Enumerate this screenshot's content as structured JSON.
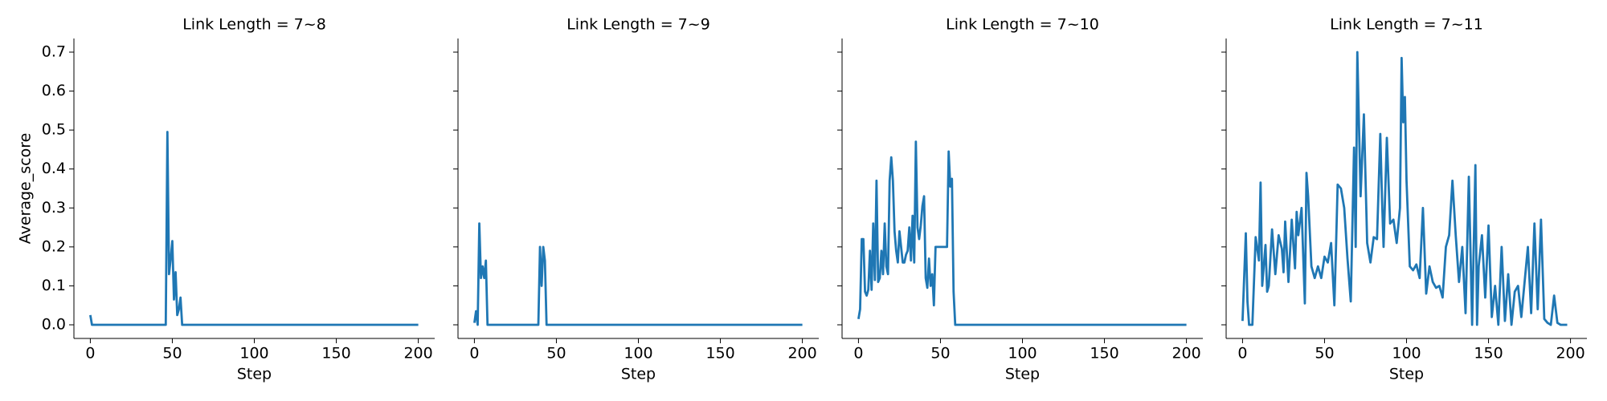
{
  "chart_data": [
    {
      "type": "line",
      "title": "Link Length = 7~8",
      "xlabel": "Step",
      "ylabel": "Average_score",
      "color": "#1f77b4",
      "xlim": [
        -10,
        210
      ],
      "xticks": [
        0,
        50,
        100,
        150,
        200
      ],
      "ylim": [
        -0.035,
        0.735
      ],
      "yticks": [
        {
          "value": 0,
          "label": "0.0"
        },
        0.1,
        0.2,
        0.3,
        0.4,
        0.5,
        0.6,
        0.7
      ],
      "x": [
        0,
        1,
        46,
        47,
        48,
        49,
        50,
        51,
        52,
        53,
        54,
        55,
        56,
        200
      ],
      "values": [
        0.025,
        0,
        0,
        0.495,
        0.13,
        0.17,
        0.215,
        0.065,
        0.135,
        0.025,
        0.04,
        0.07,
        0,
        0
      ]
    },
    {
      "type": "line",
      "title": "Link Length = 7~9",
      "xlabel": "Step",
      "color": "#1f77b4",
      "xlim": [
        -10,
        210
      ],
      "xticks": [
        0,
        50,
        100,
        150,
        200
      ],
      "x": [
        0,
        1,
        2,
        3,
        4,
        5,
        6,
        7,
        8,
        39,
        40,
        41,
        42,
        43,
        44,
        200
      ],
      "values": [
        0.005,
        0.035,
        0,
        0.26,
        0.12,
        0.15,
        0.12,
        0.165,
        0,
        0,
        0.2,
        0.1,
        0.2,
        0.165,
        0,
        0
      ]
    },
    {
      "type": "line",
      "title": "Link Length = 7~10",
      "xlabel": "Step",
      "color": "#1f77b4",
      "xlim": [
        -10,
        210
      ],
      "xticks": [
        0,
        50,
        100,
        150,
        200
      ],
      "x": [
        0,
        1,
        2,
        3,
        4,
        5,
        6,
        7,
        8,
        9,
        10,
        11,
        12,
        13,
        14,
        15,
        16,
        17,
        18,
        19,
        20,
        21,
        22,
        23,
        24,
        25,
        26,
        27,
        28,
        29,
        30,
        31,
        32,
        33,
        34,
        35,
        36,
        37,
        38,
        39,
        40,
        41,
        42,
        43,
        44,
        45,
        46,
        47,
        48,
        49,
        50,
        51,
        52,
        53,
        54,
        55,
        56,
        57,
        58,
        59,
        200
      ],
      "values": [
        0.015,
        0.04,
        0.22,
        0.22,
        0.085,
        0.075,
        0.09,
        0.19,
        0.09,
        0.26,
        0.115,
        0.37,
        0.11,
        0.12,
        0.19,
        0.13,
        0.26,
        0.15,
        0.13,
        0.37,
        0.43,
        0.37,
        0.24,
        0.19,
        0.16,
        0.24,
        0.2,
        0.16,
        0.16,
        0.18,
        0.19,
        0.25,
        0.165,
        0.28,
        0.16,
        0.47,
        0.25,
        0.22,
        0.255,
        0.305,
        0.33,
        0.12,
        0.095,
        0.17,
        0.1,
        0.13,
        0.05,
        0.2,
        0.2,
        0.2,
        0.2,
        0.2,
        0.2,
        0.2,
        0.2,
        0.445,
        0.355,
        0.375,
        0.085,
        0,
        0
      ]
    },
    {
      "type": "line",
      "title": "Link Length = 7~11",
      "xlabel": "Step",
      "color": "#1f77b4",
      "xlim": [
        -10,
        210
      ],
      "xticks": [
        0,
        50,
        100,
        150,
        200
      ],
      "x": [
        0,
        2,
        3,
        4,
        6,
        8,
        10,
        11,
        12,
        14,
        15,
        16,
        18,
        20,
        22,
        24,
        25,
        26,
        28,
        30,
        32,
        33,
        34,
        36,
        38,
        39,
        40,
        42,
        44,
        46,
        48,
        50,
        52,
        54,
        56,
        57,
        58,
        60,
        62,
        64,
        66,
        68,
        69,
        70,
        72,
        74,
        76,
        78,
        80,
        82,
        84,
        85,
        86,
        88,
        90,
        92,
        94,
        96,
        97,
        98,
        99,
        100,
        102,
        104,
        106,
        108,
        110,
        112,
        114,
        116,
        118,
        120,
        122,
        124,
        126,
        128,
        130,
        132,
        134,
        136,
        138,
        140,
        142,
        143,
        144,
        146,
        148,
        150,
        152,
        154,
        156,
        158,
        160,
        162,
        164,
        166,
        168,
        170,
        172,
        174,
        176,
        178,
        180,
        182,
        184,
        186,
        188,
        190,
        192,
        194,
        196,
        198
      ],
      "values": [
        0.01,
        0.235,
        0.06,
        0,
        0,
        0.225,
        0.165,
        0.365,
        0.1,
        0.205,
        0.085,
        0.1,
        0.245,
        0.13,
        0.23,
        0.195,
        0.135,
        0.265,
        0.11,
        0.27,
        0.145,
        0.29,
        0.23,
        0.3,
        0.055,
        0.39,
        0.33,
        0.15,
        0.12,
        0.15,
        0.12,
        0.175,
        0.16,
        0.21,
        0.05,
        0.2,
        0.36,
        0.35,
        0.3,
        0.17,
        0.06,
        0.455,
        0.2,
        0.7,
        0.33,
        0.54,
        0.21,
        0.16,
        0.225,
        0.22,
        0.49,
        0.33,
        0.2,
        0.48,
        0.26,
        0.27,
        0.21,
        0.3,
        0.685,
        0.52,
        0.585,
        0.37,
        0.15,
        0.14,
        0.155,
        0.12,
        0.3,
        0.08,
        0.15,
        0.11,
        0.095,
        0.1,
        0.07,
        0.2,
        0.23,
        0.37,
        0.23,
        0.11,
        0.2,
        0.03,
        0.38,
        0,
        0.41,
        0,
        0.15,
        0.23,
        0.07,
        0.255,
        0.02,
        0.1,
        0,
        0.2,
        0.01,
        0.13,
        0,
        0.085,
        0.1,
        0.02,
        0.11,
        0.2,
        0.03,
        0.26,
        0.04,
        0.27,
        0.015,
        0.005,
        0,
        0.075,
        0.005,
        0,
        0,
        0
      ]
    }
  ]
}
